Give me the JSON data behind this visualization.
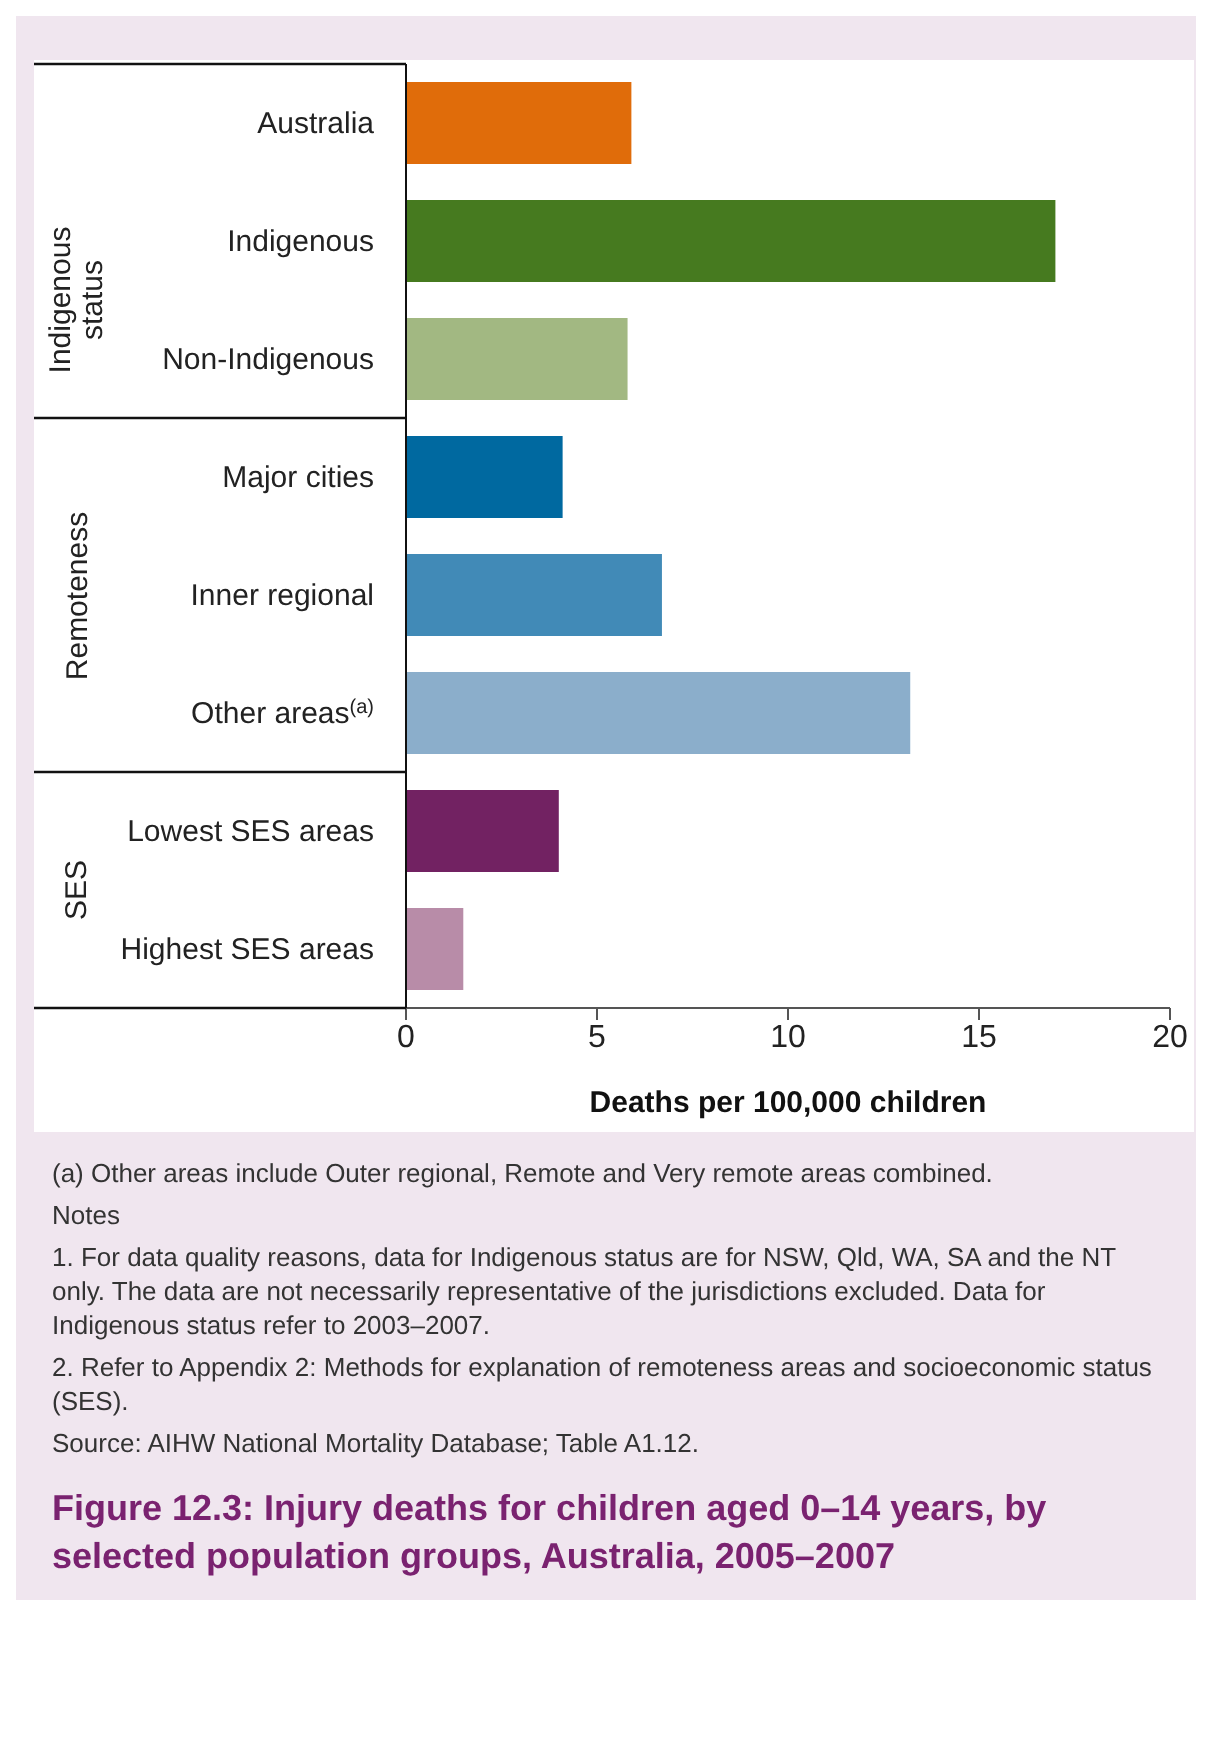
{
  "chart_data": {
    "type": "bar",
    "orientation": "horizontal",
    "title": "Figure 12.3: Injury deaths for children aged 0–14 years, by selected population groups, Australia, 2005–2007",
    "categories": [
      "Australia",
      "Indigenous",
      "Non-Indigenous",
      "Major cities",
      "Inner regional",
      "Other areas$^{(a)}$",
      "Lowest SES areas",
      "Highest SES areas"
    ],
    "values": [
      5.9,
      17.0,
      5.8,
      4.1,
      6.7,
      13.2,
      4.0,
      1.5
    ],
    "colors": [
      "#e06c0a",
      "#467a1f",
      "#a2b882",
      "#0069a0",
      "#418ab7",
      "#8baecb",
      "#722262",
      "#b88ca8"
    ],
    "xlabel": "Deaths per 100,000 children",
    "xlim": [
      0,
      20
    ],
    "xticks": [
      0,
      5,
      10,
      15,
      20
    ],
    "grid": false,
    "legend": false,
    "annotations": [
      "Indigenous status",
      "Remoteness",
      "SES",
      "(a) Other areas include Outer regional, Remote and Very remote areas combined.",
      "Notes",
      "1. For data quality reasons, data for Indigenous status are for NSW, Qld, WA, SA and the NT only. The data are not necessarily representative of the jurisdictions excluded. Data for Indigenous status refer to 2003–2007.",
      "2. Refer to Appendix 2: Methods for explanation of remoteness areas and socioeconomic status (SES).",
      "Source: AIHW National Mortality Database; Table A1.12."
    ]
  }
}
